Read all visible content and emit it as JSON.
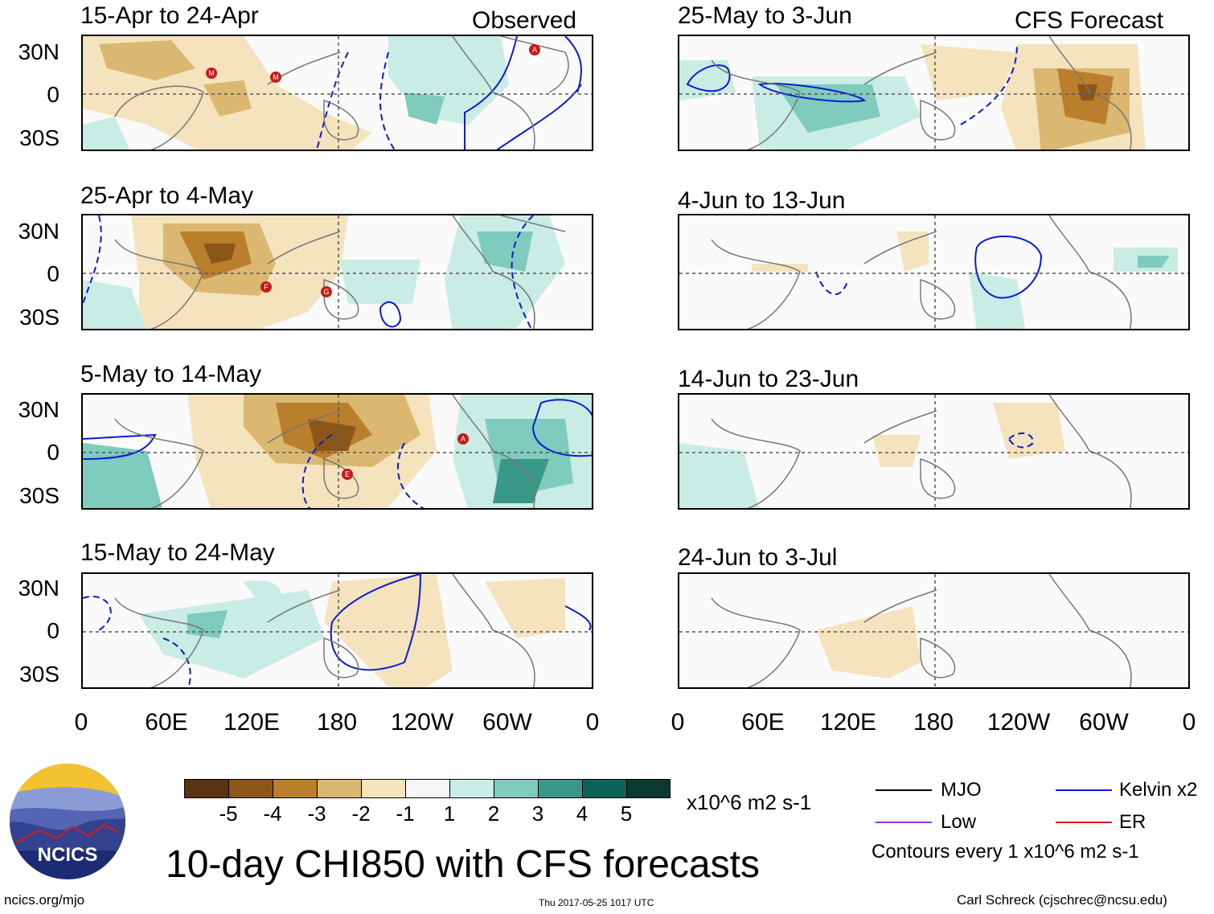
{
  "figure_title": "10-day CHI850 with CFS forecasts",
  "observed_header": "Observed",
  "forecast_header": "CFS Forecast",
  "panels_observed": [
    "15-Apr to 24-Apr",
    "25-Apr to 4-May",
    "5-May to 14-May",
    "15-May to 24-May"
  ],
  "panels_forecast": [
    "25-May to 3-Jun",
    "4-Jun to 13-Jun",
    "14-Jun to 23-Jun",
    "24-Jun to 3-Jul"
  ],
  "lat_labels": [
    "30N",
    "0",
    "30S"
  ],
  "lon_labels": [
    "0",
    "60E",
    "120E",
    "180",
    "120W",
    "60W",
    "0"
  ],
  "colorbar": {
    "unit": "x10^6 m2 s-1",
    "labels": [
      "-5",
      "-4",
      "-3",
      "-2",
      "-1",
      "1",
      "2",
      "3",
      "4",
      "5"
    ],
    "colors": [
      "#5a3412",
      "#8b5718",
      "#b97f2d",
      "#dbb871",
      "#f4e3bd",
      "#f6f6f6",
      "#c9ece4",
      "#7fcbbd",
      "#399888",
      "#0a6458",
      "#083a30"
    ]
  },
  "legend": {
    "mjo": {
      "label": "MJO",
      "color": "#000000"
    },
    "kelvin": {
      "label": "Kelvin x2",
      "color": "#0a1bd4"
    },
    "low": {
      "label": "Low",
      "color": "#9b30d9"
    },
    "er": {
      "label": "ER",
      "color": "#d71a1a"
    },
    "contours_note": "Contours every 1 x10^6 m2 s-1"
  },
  "logo_text": "NCICS",
  "footer": {
    "url": "ncics.org/mjo",
    "timestamp": "Thu 2017-05-25 1017 UTC",
    "credit": "Carl Schreck (cjschrec@ncsu.edu)"
  },
  "storm_markers": {
    "panel1": [
      "M",
      "M",
      "A"
    ],
    "panel2": [
      "F",
      "G"
    ],
    "panel3": [
      "A",
      "E"
    ]
  }
}
